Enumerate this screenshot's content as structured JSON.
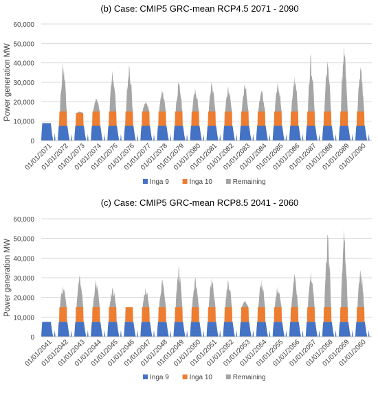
{
  "chart_data": [
    {
      "type": "area",
      "title": "(b)  Case: CMIP5 GRC-mean  RCP4.5  2071 - 2090",
      "ylabel": "Power generation MW",
      "xlabel": "",
      "ylim": [
        0,
        60000
      ],
      "yticks": [
        "0",
        "10,000",
        "20,000",
        "30,000",
        "40,000",
        "50,000",
        "60,000"
      ],
      "categories": [
        "01/01/2071",
        "01/01/2072",
        "01/01/2073",
        "01/01/2074",
        "01/01/2075",
        "01/01/2076",
        "01/01/2077",
        "01/01/2078",
        "01/01/2079",
        "01/01/2080",
        "01/01/2081",
        "01/01/2082",
        "01/01/2083",
        "01/01/2084",
        "01/01/2085",
        "01/01/2086",
        "01/01/2087",
        "01/01/2088",
        "01/01/2089",
        "01/01/2090"
      ],
      "stacked": true,
      "grid": "horizontal",
      "legend_position": "bottom",
      "series": [
        {
          "name": "Inga 9",
          "color": "#4472C4",
          "values": [
            9000,
            7600,
            7600,
            7600,
            7600,
            7600,
            7600,
            7600,
            7600,
            7600,
            7600,
            7600,
            7600,
            7600,
            7600,
            7600,
            7600,
            7600,
            7600,
            7600
          ]
        },
        {
          "name": "Inga 10",
          "color": "#ED7D31",
          "values": [
            0,
            7400,
            6500,
            7400,
            7400,
            7400,
            7400,
            7400,
            7400,
            7400,
            7400,
            7400,
            7400,
            7400,
            7400,
            7400,
            7400,
            7400,
            7400,
            7400
          ]
        },
        {
          "name": "Remaining",
          "color": "#A5A5A5",
          "values": [
            0,
            25000,
            1000,
            7000,
            21000,
            24000,
            5000,
            11000,
            15000,
            12000,
            15000,
            13000,
            14000,
            11000,
            15000,
            18000,
            30000,
            26000,
            34000,
            23000
          ]
        }
      ]
    },
    {
      "type": "area",
      "title": "(c)  Case: CMIP5 GRC-mean  RCP8.5  2041 - 2060",
      "ylabel": "Power generation MW",
      "xlabel": "",
      "ylim": [
        0,
        60000
      ],
      "yticks": [
        "0",
        "10,000",
        "20,000",
        "30,000",
        "40,000",
        "50,000",
        "60,000"
      ],
      "categories": [
        "01/01/2041",
        "01/01/2042",
        "01/01/2043",
        "01/01/2044",
        "01/01/2045",
        "01/01/2046",
        "01/01/2047",
        "01/01/2048",
        "01/01/2049",
        "01/01/2050",
        "01/01/2051",
        "01/01/2052",
        "01/01/2053",
        "01/01/2054",
        "01/01/2055",
        "01/01/2056",
        "01/01/2057",
        "01/01/2058",
        "01/01/2059",
        "01/01/2060"
      ],
      "stacked": true,
      "grid": "horizontal",
      "legend_position": "bottom",
      "series": [
        {
          "name": "Inga 9",
          "color": "#4472C4",
          "values": [
            7600,
            7600,
            7600,
            7600,
            7600,
            7600,
            7600,
            7600,
            7600,
            7600,
            7600,
            7600,
            7600,
            7600,
            7600,
            7600,
            7600,
            7600,
            7600,
            7600
          ]
        },
        {
          "name": "Inga 10",
          "color": "#ED7D31",
          "values": [
            0,
            7400,
            7400,
            7400,
            7400,
            7400,
            7400,
            7400,
            7400,
            7400,
            7400,
            7400,
            7400,
            7400,
            7400,
            7400,
            7400,
            7400,
            7400,
            7400
          ]
        },
        {
          "name": "Remaining",
          "color": "#A5A5A5",
          "values": [
            0,
            11000,
            16000,
            14000,
            10000,
            0,
            10000,
            14000,
            21000,
            15000,
            15000,
            14000,
            3000,
            14000,
            11000,
            17000,
            18000,
            37000,
            40000,
            19000
          ]
        }
      ]
    }
  ]
}
